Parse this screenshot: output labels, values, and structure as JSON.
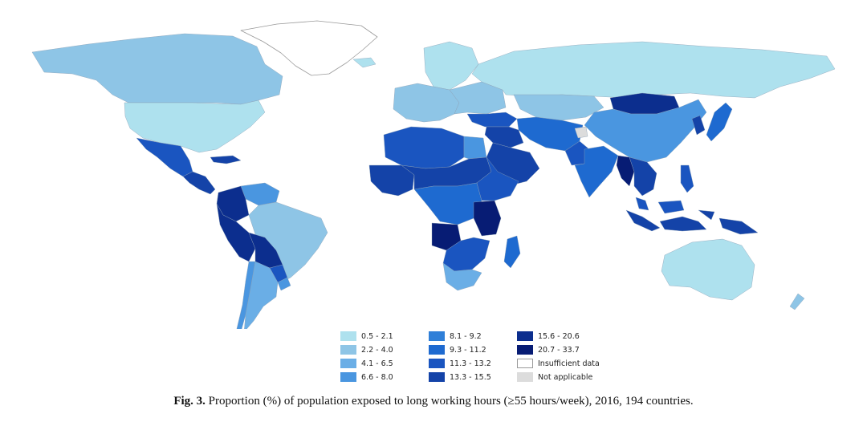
{
  "figure": {
    "label": "Fig. 3.",
    "caption": "Proportion (%) of population exposed to long working hours (≥55 hours/week), 2016, 194 countries."
  },
  "legend": {
    "columns": [
      [
        {
          "label": "0.5 - 2.1",
          "color": "#aee1ee"
        },
        {
          "label": "2.2 - 4.0",
          "color": "#8ec5e6"
        },
        {
          "label": "4.1 - 6.5",
          "color": "#6aaee6"
        },
        {
          "label": "6.6 - 8.0",
          "color": "#4a96e0"
        }
      ],
      [
        {
          "label": "8.1 - 9.2",
          "color": "#2f7fd8"
        },
        {
          "label": "9.3 - 11.2",
          "color": "#1e6ad0"
        },
        {
          "label": "11.3 - 13.2",
          "color": "#1a55c0"
        },
        {
          "label": "13.3 - 15.5",
          "color": "#1443a8"
        }
      ],
      [
        {
          "label": "15.6 - 20.6",
          "color": "#0c2e8e"
        },
        {
          "label": "20.7 - 33.7",
          "color": "#071c74"
        },
        {
          "label": "Insufficient data",
          "color": "#ffffff"
        },
        {
          "label": "Not applicable",
          "color": "#dcdcdc"
        }
      ]
    ]
  },
  "regions": [
    {
      "name": "greenland",
      "color": "#ffffff"
    },
    {
      "name": "canada",
      "color": "#8ec5e6"
    },
    {
      "name": "usa",
      "color": "#aee1ee"
    },
    {
      "name": "mexico",
      "color": "#1a55c0"
    },
    {
      "name": "central-america",
      "color": "#1443a8"
    },
    {
      "name": "colombia",
      "color": "#0c2e8e"
    },
    {
      "name": "venezuela",
      "color": "#4a96e0"
    },
    {
      "name": "ecuador-peru",
      "color": "#0c2e8e"
    },
    {
      "name": "brazil",
      "color": "#8ec5e6"
    },
    {
      "name": "bolivia",
      "color": "#0c2e8e"
    },
    {
      "name": "paraguay",
      "color": "#1a55c0"
    },
    {
      "name": "argentina",
      "color": "#6aaee6"
    },
    {
      "name": "chile",
      "color": "#4a96e0"
    },
    {
      "name": "uruguay",
      "color": "#4a96e0"
    },
    {
      "name": "iceland",
      "color": "#aee1ee"
    },
    {
      "name": "western-europe",
      "color": "#8ec5e6"
    },
    {
      "name": "scandinavia",
      "color": "#aee1ee"
    },
    {
      "name": "eastern-europe",
      "color": "#8ec5e6"
    },
    {
      "name": "russia",
      "color": "#aee1ee"
    },
    {
      "name": "turkey",
      "color": "#1a55c0"
    },
    {
      "name": "middle-east",
      "color": "#1443a8"
    },
    {
      "name": "iran-central",
      "color": "#1e6ad0"
    },
    {
      "name": "kazakhstan",
      "color": "#8ec5e6"
    },
    {
      "name": "mongolia",
      "color": "#0c2e8e"
    },
    {
      "name": "china",
      "color": "#4a96e0"
    },
    {
      "name": "korea",
      "color": "#1443a8"
    },
    {
      "name": "japan",
      "color": "#1e6ad0"
    },
    {
      "name": "india",
      "color": "#1e6ad0"
    },
    {
      "name": "pakistan",
      "color": "#1a55c0"
    },
    {
      "name": "myanmar",
      "color": "#071c74"
    },
    {
      "name": "indochina",
      "color": "#1443a8"
    },
    {
      "name": "malaysia",
      "color": "#1a55c0"
    },
    {
      "name": "indonesia",
      "color": "#1443a8"
    },
    {
      "name": "philippines",
      "color": "#1a55c0"
    },
    {
      "name": "png",
      "color": "#1443a8"
    },
    {
      "name": "australia",
      "color": "#aee1ee"
    },
    {
      "name": "new-zealand",
      "color": "#8ec5e6"
    },
    {
      "name": "north-africa",
      "color": "#1a55c0"
    },
    {
      "name": "egypt",
      "color": "#4a96e0"
    },
    {
      "name": "west-africa",
      "color": "#1443a8"
    },
    {
      "name": "sahel",
      "color": "#1443a8"
    },
    {
      "name": "central-africa",
      "color": "#1e6ad0"
    },
    {
      "name": "ethiopia",
      "color": "#1a55c0"
    },
    {
      "name": "east-africa",
      "color": "#071c74"
    },
    {
      "name": "angola",
      "color": "#071c74"
    },
    {
      "name": "southern-africa",
      "color": "#1a55c0"
    },
    {
      "name": "south-africa",
      "color": "#6aaee6"
    },
    {
      "name": "madagascar",
      "color": "#1e6ad0"
    },
    {
      "name": "arabia",
      "color": "#1443a8"
    },
    {
      "name": "not-applicable-patch",
      "color": "#dcdcdc"
    }
  ]
}
